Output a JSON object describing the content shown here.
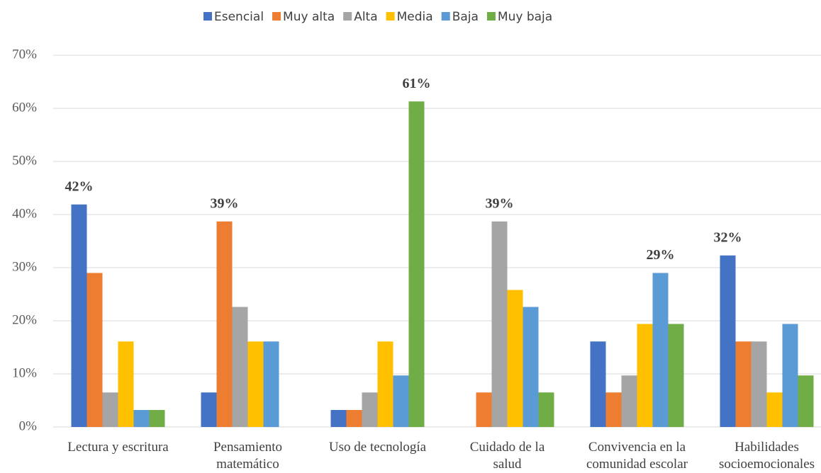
{
  "chart_data": {
    "type": "bar",
    "categories": [
      "Lectura y escritura",
      "Pensamiento\nmatemático",
      "Uso de tecnología",
      "Cuidado de la\nsalud",
      "Convivencia en la\ncomunidad escolar",
      "Habilidades\nsocioemocionales"
    ],
    "series": [
      {
        "name": "Esencial",
        "color": "#4472c4",
        "values": [
          41.9,
          6.5,
          3.2,
          0,
          16.1,
          32.3
        ],
        "value_labels": [
          "42%",
          null,
          null,
          null,
          null,
          "32%"
        ]
      },
      {
        "name": "Muy alta",
        "color": "#ed7d31",
        "values": [
          29,
          38.7,
          3.2,
          6.5,
          6.5,
          16.1
        ],
        "value_labels": [
          null,
          "39%",
          null,
          null,
          null,
          null
        ]
      },
      {
        "name": "Alta",
        "color": "#a5a5a5",
        "values": [
          6.5,
          22.6,
          6.5,
          38.7,
          9.7,
          16.1
        ],
        "value_labels": [
          null,
          null,
          null,
          "39%",
          null,
          null
        ]
      },
      {
        "name": "Media",
        "color": "#ffc000",
        "values": [
          16.1,
          16.1,
          16.1,
          25.8,
          19.4,
          6.5
        ]
      },
      {
        "name": "Baja",
        "color": "#5b9bd5",
        "values": [
          3.2,
          16.1,
          9.7,
          22.6,
          29,
          19.4
        ],
        "value_labels": [
          null,
          null,
          null,
          null,
          "29%",
          null
        ]
      },
      {
        "name": "Muy baja",
        "color": "#70ad47",
        "values": [
          3.2,
          0,
          61.3,
          6.5,
          19.4,
          9.7
        ],
        "value_labels": [
          null,
          null,
          "61%",
          null,
          null,
          null
        ]
      }
    ],
    "ylim": [
      0,
      70
    ],
    "yticks": [
      {
        "value": 0,
        "label": "0%"
      },
      {
        "value": 10,
        "label": "10%"
      },
      {
        "value": 20,
        "label": "20%"
      },
      {
        "value": 30,
        "label": "30%"
      },
      {
        "value": 40,
        "label": "40%"
      },
      {
        "value": 50,
        "label": "50%"
      },
      {
        "value": 60,
        "label": "60%"
      },
      {
        "value": 70,
        "label": "70%"
      }
    ],
    "grid": true,
    "legend": "top"
  }
}
